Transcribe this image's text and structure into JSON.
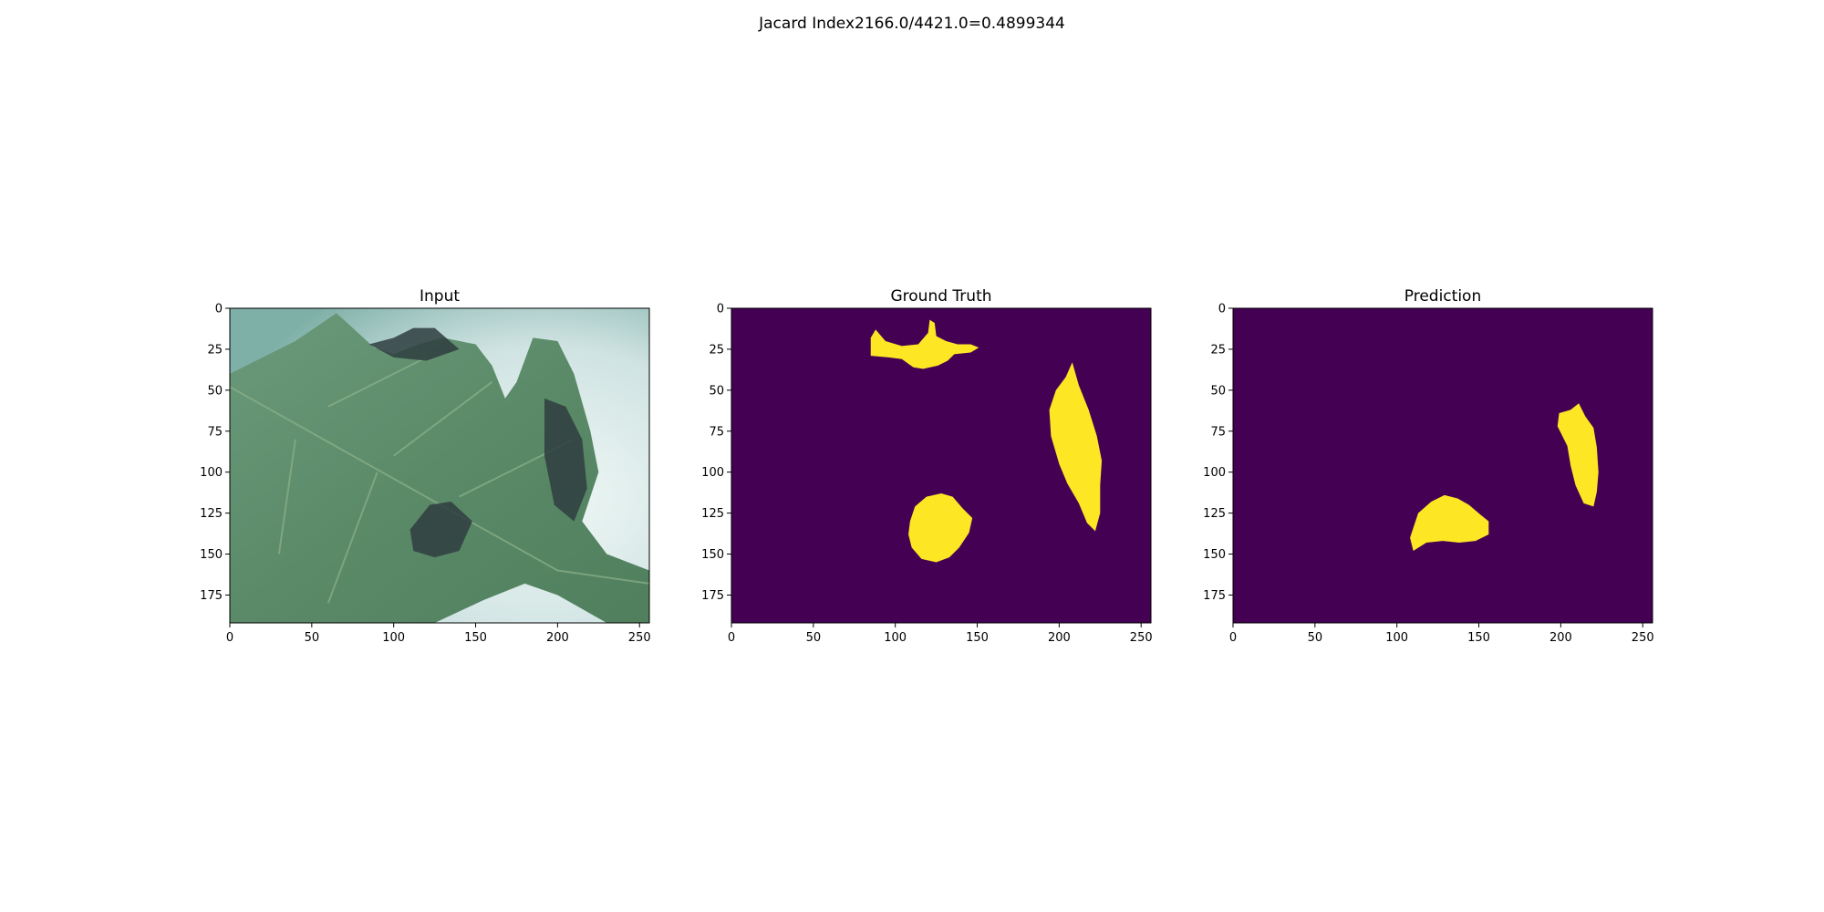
{
  "suptitle": "Jacard Index2166.0/4421.0=0.4899344",
  "colors": {
    "mask_background": "#440154",
    "mask_foreground": "#fde725",
    "leaf_green": "#5a8a68",
    "leaf_light": "#8db08a",
    "backdrop": "#cfe3e2",
    "lesion": "#2f3d3f"
  },
  "chart_data": [
    {
      "type": "heatmap",
      "title": "Input",
      "content": "photo of a diseased leaf",
      "xlim": [
        0,
        256
      ],
      "ylim": [
        192,
        0
      ],
      "xticks": [
        0,
        50,
        100,
        150,
        200,
        250
      ],
      "yticks": [
        0,
        25,
        50,
        75,
        100,
        125,
        150,
        175
      ],
      "grid": false
    },
    {
      "type": "heatmap",
      "title": "Ground Truth",
      "content": "binary mask",
      "xlim": [
        0,
        256
      ],
      "ylim": [
        192,
        0
      ],
      "xticks": [
        0,
        50,
        100,
        150,
        200,
        250
      ],
      "yticks": [
        0,
        25,
        50,
        75,
        100,
        125,
        150,
        175
      ],
      "grid": false,
      "regions": [
        {
          "name": "blob-top",
          "points": [
            [
              85,
              18
            ],
            [
              88,
              13
            ],
            [
              94,
              20
            ],
            [
              104,
              23
            ],
            [
              114,
              22
            ],
            [
              120,
              15
            ],
            [
              121,
              7
            ],
            [
              124,
              9
            ],
            [
              125,
              17
            ],
            [
              131,
              20
            ],
            [
              138,
              22
            ],
            [
              146,
              22
            ],
            [
              151,
              24
            ],
            [
              146,
              27
            ],
            [
              136,
              28
            ],
            [
              132,
              32
            ],
            [
              126,
              35
            ],
            [
              117,
              37
            ],
            [
              111,
              36
            ],
            [
              104,
              31
            ],
            [
              96,
              30
            ],
            [
              85,
              29
            ]
          ]
        },
        {
          "name": "blob-right",
          "points": [
            [
              208,
              33
            ],
            [
              212,
              47
            ],
            [
              218,
              62
            ],
            [
              223,
              78
            ],
            [
              226,
              93
            ],
            [
              225,
              108
            ],
            [
              225,
              125
            ],
            [
              222,
              136
            ],
            [
              217,
              131
            ],
            [
              212,
              119
            ],
            [
              205,
              107
            ],
            [
              200,
              95
            ],
            [
              195,
              78
            ],
            [
              194,
              62
            ],
            [
              198,
              50
            ],
            [
              204,
              42
            ]
          ]
        },
        {
          "name": "blob-bottom",
          "points": [
            [
              109,
              130
            ],
            [
              112,
              121
            ],
            [
              119,
              115
            ],
            [
              128,
              113
            ],
            [
              135,
              115
            ],
            [
              141,
              122
            ],
            [
              147,
              128
            ],
            [
              145,
              137
            ],
            [
              139,
              146
            ],
            [
              133,
              152
            ],
            [
              125,
              155
            ],
            [
              116,
              153
            ],
            [
              110,
              146
            ],
            [
              108,
              138
            ]
          ]
        }
      ]
    },
    {
      "type": "heatmap",
      "title": "Prediction",
      "content": "binary mask",
      "xlim": [
        0,
        256
      ],
      "ylim": [
        192,
        0
      ],
      "xticks": [
        0,
        50,
        100,
        150,
        200,
        250
      ],
      "yticks": [
        0,
        25,
        50,
        75,
        100,
        125,
        150,
        175
      ],
      "grid": false,
      "regions": [
        {
          "name": "blob-right",
          "points": [
            [
              206,
              62
            ],
            [
              211,
              58
            ],
            [
              215,
              66
            ],
            [
              220,
              73
            ],
            [
              222,
              85
            ],
            [
              223,
              100
            ],
            [
              222,
              112
            ],
            [
              220,
              121
            ],
            [
              214,
              119
            ],
            [
              209,
              108
            ],
            [
              206,
              96
            ],
            [
              204,
              84
            ],
            [
              198,
              72
            ],
            [
              199,
              64
            ]
          ]
        },
        {
          "name": "blob-bottom",
          "points": [
            [
              108,
              140
            ],
            [
              113,
              125
            ],
            [
              121,
              118
            ],
            [
              129,
              114
            ],
            [
              137,
              116
            ],
            [
              144,
              120
            ],
            [
              151,
              126
            ],
            [
              156,
              130
            ],
            [
              156,
              138
            ],
            [
              148,
              142
            ],
            [
              138,
              143
            ],
            [
              128,
              142
            ],
            [
              118,
              143
            ],
            [
              110,
              148
            ]
          ]
        }
      ]
    }
  ]
}
